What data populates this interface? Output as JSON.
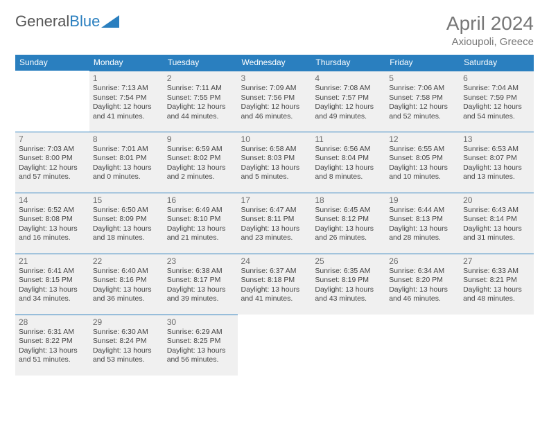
{
  "logo": {
    "text1": "General",
    "text2": "Blue"
  },
  "title": "April 2024",
  "location": "Axioupoli, Greece",
  "colors": {
    "header_bg": "#2a7fbf",
    "header_text": "#ffffff",
    "cell_bg": "#f0f0f0",
    "cell_border": "#2a7fbf",
    "text": "#444444",
    "title_text": "#777777"
  },
  "weekdays": [
    "Sunday",
    "Monday",
    "Tuesday",
    "Wednesday",
    "Thursday",
    "Friday",
    "Saturday"
  ],
  "weeks": [
    [
      null,
      {
        "d": "1",
        "sr": "Sunrise: 7:13 AM",
        "ss": "Sunset: 7:54 PM",
        "dl1": "Daylight: 12 hours",
        "dl2": "and 41 minutes."
      },
      {
        "d": "2",
        "sr": "Sunrise: 7:11 AM",
        "ss": "Sunset: 7:55 PM",
        "dl1": "Daylight: 12 hours",
        "dl2": "and 44 minutes."
      },
      {
        "d": "3",
        "sr": "Sunrise: 7:09 AM",
        "ss": "Sunset: 7:56 PM",
        "dl1": "Daylight: 12 hours",
        "dl2": "and 46 minutes."
      },
      {
        "d": "4",
        "sr": "Sunrise: 7:08 AM",
        "ss": "Sunset: 7:57 PM",
        "dl1": "Daylight: 12 hours",
        "dl2": "and 49 minutes."
      },
      {
        "d": "5",
        "sr": "Sunrise: 7:06 AM",
        "ss": "Sunset: 7:58 PM",
        "dl1": "Daylight: 12 hours",
        "dl2": "and 52 minutes."
      },
      {
        "d": "6",
        "sr": "Sunrise: 7:04 AM",
        "ss": "Sunset: 7:59 PM",
        "dl1": "Daylight: 12 hours",
        "dl2": "and 54 minutes."
      }
    ],
    [
      {
        "d": "7",
        "sr": "Sunrise: 7:03 AM",
        "ss": "Sunset: 8:00 PM",
        "dl1": "Daylight: 12 hours",
        "dl2": "and 57 minutes."
      },
      {
        "d": "8",
        "sr": "Sunrise: 7:01 AM",
        "ss": "Sunset: 8:01 PM",
        "dl1": "Daylight: 13 hours",
        "dl2": "and 0 minutes."
      },
      {
        "d": "9",
        "sr": "Sunrise: 6:59 AM",
        "ss": "Sunset: 8:02 PM",
        "dl1": "Daylight: 13 hours",
        "dl2": "and 2 minutes."
      },
      {
        "d": "10",
        "sr": "Sunrise: 6:58 AM",
        "ss": "Sunset: 8:03 PM",
        "dl1": "Daylight: 13 hours",
        "dl2": "and 5 minutes."
      },
      {
        "d": "11",
        "sr": "Sunrise: 6:56 AM",
        "ss": "Sunset: 8:04 PM",
        "dl1": "Daylight: 13 hours",
        "dl2": "and 8 minutes."
      },
      {
        "d": "12",
        "sr": "Sunrise: 6:55 AM",
        "ss": "Sunset: 8:05 PM",
        "dl1": "Daylight: 13 hours",
        "dl2": "and 10 minutes."
      },
      {
        "d": "13",
        "sr": "Sunrise: 6:53 AM",
        "ss": "Sunset: 8:07 PM",
        "dl1": "Daylight: 13 hours",
        "dl2": "and 13 minutes."
      }
    ],
    [
      {
        "d": "14",
        "sr": "Sunrise: 6:52 AM",
        "ss": "Sunset: 8:08 PM",
        "dl1": "Daylight: 13 hours",
        "dl2": "and 16 minutes."
      },
      {
        "d": "15",
        "sr": "Sunrise: 6:50 AM",
        "ss": "Sunset: 8:09 PM",
        "dl1": "Daylight: 13 hours",
        "dl2": "and 18 minutes."
      },
      {
        "d": "16",
        "sr": "Sunrise: 6:49 AM",
        "ss": "Sunset: 8:10 PM",
        "dl1": "Daylight: 13 hours",
        "dl2": "and 21 minutes."
      },
      {
        "d": "17",
        "sr": "Sunrise: 6:47 AM",
        "ss": "Sunset: 8:11 PM",
        "dl1": "Daylight: 13 hours",
        "dl2": "and 23 minutes."
      },
      {
        "d": "18",
        "sr": "Sunrise: 6:45 AM",
        "ss": "Sunset: 8:12 PM",
        "dl1": "Daylight: 13 hours",
        "dl2": "and 26 minutes."
      },
      {
        "d": "19",
        "sr": "Sunrise: 6:44 AM",
        "ss": "Sunset: 8:13 PM",
        "dl1": "Daylight: 13 hours",
        "dl2": "and 28 minutes."
      },
      {
        "d": "20",
        "sr": "Sunrise: 6:43 AM",
        "ss": "Sunset: 8:14 PM",
        "dl1": "Daylight: 13 hours",
        "dl2": "and 31 minutes."
      }
    ],
    [
      {
        "d": "21",
        "sr": "Sunrise: 6:41 AM",
        "ss": "Sunset: 8:15 PM",
        "dl1": "Daylight: 13 hours",
        "dl2": "and 34 minutes."
      },
      {
        "d": "22",
        "sr": "Sunrise: 6:40 AM",
        "ss": "Sunset: 8:16 PM",
        "dl1": "Daylight: 13 hours",
        "dl2": "and 36 minutes."
      },
      {
        "d": "23",
        "sr": "Sunrise: 6:38 AM",
        "ss": "Sunset: 8:17 PM",
        "dl1": "Daylight: 13 hours",
        "dl2": "and 39 minutes."
      },
      {
        "d": "24",
        "sr": "Sunrise: 6:37 AM",
        "ss": "Sunset: 8:18 PM",
        "dl1": "Daylight: 13 hours",
        "dl2": "and 41 minutes."
      },
      {
        "d": "25",
        "sr": "Sunrise: 6:35 AM",
        "ss": "Sunset: 8:19 PM",
        "dl1": "Daylight: 13 hours",
        "dl2": "and 43 minutes."
      },
      {
        "d": "26",
        "sr": "Sunrise: 6:34 AM",
        "ss": "Sunset: 8:20 PM",
        "dl1": "Daylight: 13 hours",
        "dl2": "and 46 minutes."
      },
      {
        "d": "27",
        "sr": "Sunrise: 6:33 AM",
        "ss": "Sunset: 8:21 PM",
        "dl1": "Daylight: 13 hours",
        "dl2": "and 48 minutes."
      }
    ],
    [
      {
        "d": "28",
        "sr": "Sunrise: 6:31 AM",
        "ss": "Sunset: 8:22 PM",
        "dl1": "Daylight: 13 hours",
        "dl2": "and 51 minutes."
      },
      {
        "d": "29",
        "sr": "Sunrise: 6:30 AM",
        "ss": "Sunset: 8:24 PM",
        "dl1": "Daylight: 13 hours",
        "dl2": "and 53 minutes."
      },
      {
        "d": "30",
        "sr": "Sunrise: 6:29 AM",
        "ss": "Sunset: 8:25 PM",
        "dl1": "Daylight: 13 hours",
        "dl2": "and 56 minutes."
      },
      null,
      null,
      null,
      null
    ]
  ]
}
